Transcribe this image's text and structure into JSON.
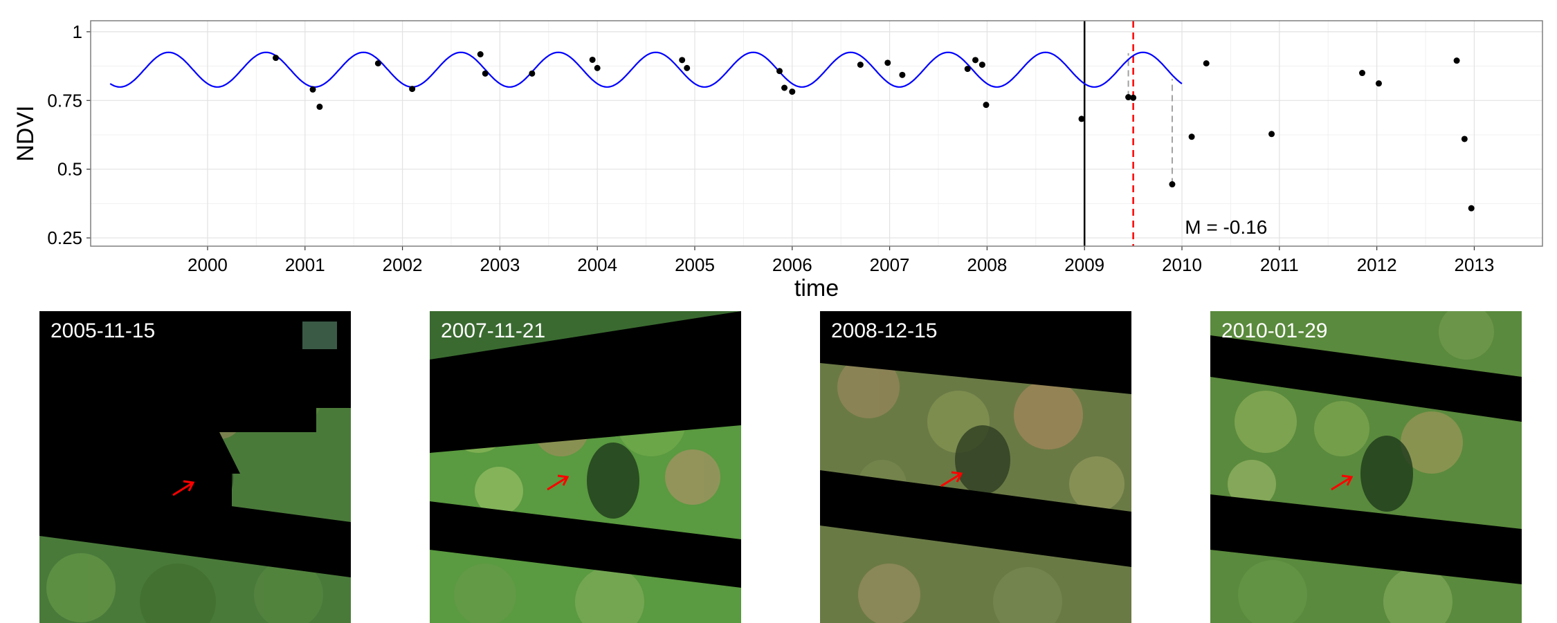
{
  "chart_data": {
    "type": "scatter",
    "xlabel": "time",
    "ylabel": "NDVI",
    "xlim": [
      1998.8,
      2013.7
    ],
    "ylim": [
      0.22,
      1.04
    ],
    "grid": true,
    "x_ticks": [
      2000,
      2001,
      2002,
      2003,
      2004,
      2005,
      2006,
      2007,
      2008,
      2009,
      2010,
      2011,
      2012,
      2013
    ],
    "y_ticks": [
      0.25,
      0.5,
      0.75,
      1
    ],
    "y_tick_labels": [
      "0.25",
      "0.5",
      "0.75",
      "1"
    ],
    "series": [
      {
        "type": "scatter",
        "color": "#000000",
        "points": [
          [
            2000.7,
            0.905
          ],
          [
            2001.08,
            0.79
          ],
          [
            2001.15,
            0.727
          ],
          [
            2001.75,
            0.885
          ],
          [
            2002.1,
            0.792
          ],
          [
            2002.8,
            0.918
          ],
          [
            2002.85,
            0.848
          ],
          [
            2003.33,
            0.848
          ],
          [
            2003.95,
            0.898
          ],
          [
            2004.0,
            0.868
          ],
          [
            2004.87,
            0.897
          ],
          [
            2004.92,
            0.868
          ],
          [
            2005.87,
            0.857
          ],
          [
            2005.92,
            0.796
          ],
          [
            2006.0,
            0.782
          ],
          [
            2006.7,
            0.88
          ],
          [
            2006.98,
            0.887
          ],
          [
            2007.13,
            0.843
          ],
          [
            2007.8,
            0.865
          ],
          [
            2007.88,
            0.897
          ],
          [
            2007.95,
            0.88
          ],
          [
            2007.99,
            0.734
          ],
          [
            2008.97,
            0.683
          ],
          [
            2009.45,
            0.762
          ],
          [
            2009.5,
            0.76
          ],
          [
            2009.9,
            0.445
          ],
          [
            2010.1,
            0.618
          ],
          [
            2010.25,
            0.885
          ],
          [
            2010.92,
            0.628
          ],
          [
            2011.85,
            0.85
          ],
          [
            2012.02,
            0.812
          ],
          [
            2012.82,
            0.895
          ],
          [
            2012.9,
            0.61
          ],
          [
            2012.97,
            0.358
          ]
        ]
      },
      {
        "type": "line",
        "color": "#0000ff",
        "function": "mean + amp * sin(2*pi*(t - phase))",
        "mean": 0.862,
        "amplitude": 0.063,
        "phase": 2000.35,
        "x_range": [
          1999.0,
          2010.0
        ]
      }
    ],
    "vlines": [
      {
        "x": 2009.0,
        "color": "#000000",
        "style": "solid"
      },
      {
        "x": 2009.5,
        "color": "#ff0000",
        "style": "dashed"
      }
    ],
    "residuals": [
      {
        "x": 2009.45,
        "from": 0.762,
        "to": 0.922
      },
      {
        "x": 2009.9,
        "from": 0.445,
        "to": 0.828
      }
    ],
    "annotation": {
      "text": "M = -0.16",
      "x": 2010.03,
      "y": 0.265
    }
  },
  "panels": [
    {
      "date": "2005-11-15"
    },
    {
      "date": "2007-11-21"
    },
    {
      "date": "2008-12-15"
    },
    {
      "date": "2010-01-29"
    }
  ]
}
